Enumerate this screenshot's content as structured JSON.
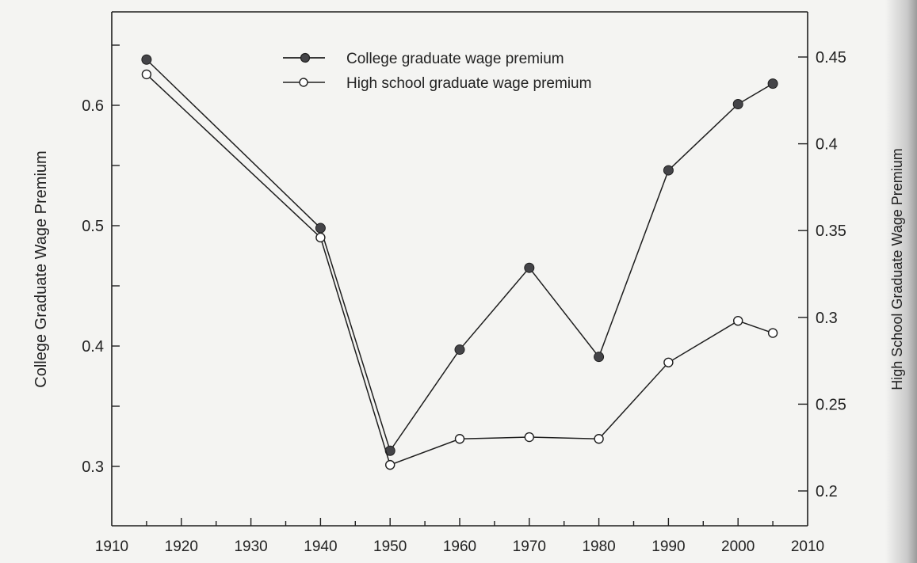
{
  "chart_data": {
    "type": "line",
    "title": "",
    "xlabel": "",
    "ylabel": "College Graduate Wage Premium",
    "ylabel_right": "High School Graduate Wage Premium",
    "x": [
      1915,
      1940,
      1950,
      1960,
      1970,
      1980,
      1990,
      2000,
      2005
    ],
    "xlim": [
      1910,
      2010
    ],
    "xticks": [
      1910,
      1920,
      1930,
      1940,
      1950,
      1960,
      1970,
      1980,
      1990,
      2000,
      2010
    ],
    "ylim": [
      0.28,
      0.707
    ],
    "yticks": [
      0.3,
      0.4,
      0.5,
      0.6
    ],
    "ylim_right": [
      0.179,
      0.475
    ],
    "yticks_right": [
      0.2,
      0.25,
      0.3,
      0.35,
      0.4,
      0.45
    ],
    "grid": false,
    "legend_position": "upper center",
    "series": [
      {
        "name": "College graduate wage premium",
        "axis": "left",
        "marker": "filled-circle",
        "values": [
          0.638,
          0.498,
          0.313,
          0.397,
          0.465,
          0.391,
          0.546,
          0.601,
          0.618
        ]
      },
      {
        "name": "High school graduate wage premium",
        "axis": "right",
        "marker": "open-circle",
        "values": [
          0.44,
          0.346,
          0.215,
          0.23,
          0.231,
          0.23,
          0.274,
          0.298,
          0.291
        ]
      }
    ]
  },
  "labels": {
    "ylabel_left": "College Graduate Wage Premium",
    "ylabel_right": "High School Graduate Wage Premium",
    "legend": [
      "College graduate wage premium",
      "High school graduate wage premium"
    ]
  },
  "colors": {
    "line": "#1e1e1e",
    "marker_fill": "#444448",
    "background": "#f4f4f2"
  }
}
